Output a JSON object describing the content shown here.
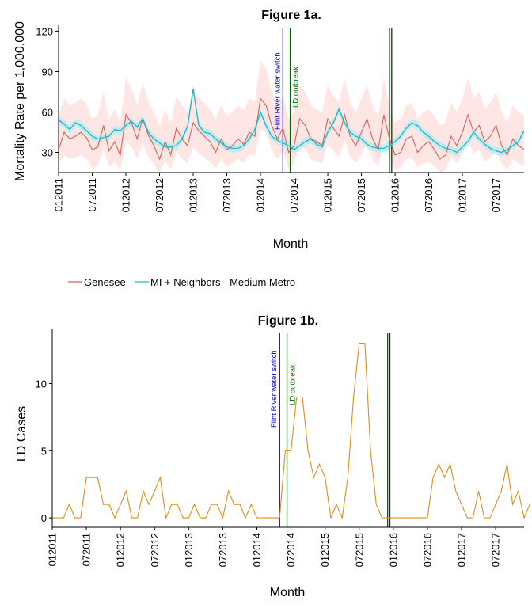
{
  "colors": {
    "genesee": "#e05c55",
    "genesee_band": "#fde6e4",
    "mi": "#1eb6c8",
    "mi_band": "#b6ecef",
    "ld": "#e08c1a",
    "switch": "#0000cc",
    "outbreak": "#006400",
    "line_dark": "#222222"
  },
  "chart_data": [
    {
      "type": "line",
      "title": "Figure 1a.",
      "xlabel": "Month",
      "ylabel": "Mortality Rate per 1,000,000",
      "ylim": [
        15,
        122
      ],
      "yticks": [
        30,
        60,
        90,
        120
      ],
      "xlim": [
        0,
        83
      ],
      "xtick_positions": [
        0,
        6,
        12,
        18,
        24,
        30,
        36,
        42,
        48,
        54,
        60,
        66,
        72,
        78
      ],
      "xtick_labels": [
        "012011",
        "072011",
        "012012",
        "072012",
        "012013",
        "072013",
        "012014",
        "072014",
        "012015",
        "072015",
        "012016",
        "072016",
        "012017",
        "072017"
      ],
      "legend": {
        "placement": "bottom-left",
        "entries": [
          "Genesee",
          "MI + Neighbors - Medium Metro"
        ]
      },
      "series": [
        {
          "name": "Genesee",
          "values": [
            32,
            45,
            40,
            42,
            45,
            41,
            32,
            34,
            50,
            31,
            38,
            28,
            58,
            52,
            40,
            55,
            43,
            35,
            25,
            38,
            28,
            48,
            40,
            35,
            52,
            46,
            42,
            38,
            30,
            40,
            32,
            35,
            40,
            36,
            45,
            42,
            70,
            65,
            50,
            40,
            48,
            30,
            35,
            55,
            50,
            40,
            38,
            35,
            55,
            48,
            42,
            58,
            42,
            35,
            45,
            55,
            40,
            32,
            58,
            40,
            28,
            30,
            40,
            42,
            30,
            35,
            38,
            32,
            25,
            28,
            42,
            35,
            45,
            58,
            45,
            50,
            38,
            42,
            50,
            35,
            28,
            40,
            35,
            32
          ]
        },
        {
          "name": "MI + Neighbors - Medium Metro",
          "values": [
            54,
            51,
            47,
            52,
            50,
            46,
            42,
            40,
            41,
            42,
            47,
            46,
            50,
            53,
            49,
            55,
            45,
            40,
            37,
            34,
            34,
            35,
            40,
            49,
            77,
            50,
            45,
            44,
            40,
            37,
            34,
            33,
            33,
            35,
            40,
            47,
            60,
            50,
            42,
            39,
            37,
            35,
            32,
            35,
            38,
            40,
            36,
            34,
            45,
            52,
            62,
            52,
            45,
            42,
            40,
            36,
            34,
            33,
            33,
            35,
            38,
            42,
            48,
            52,
            50,
            45,
            42,
            38,
            35,
            33,
            32,
            30,
            34,
            38,
            45,
            40,
            36,
            33,
            31,
            30,
            32,
            35,
            38,
            46
          ]
        },
        {
          "name": "band_low",
          "values": [
            22,
            28,
            25,
            26,
            28,
            25,
            18,
            20,
            32,
            19,
            23,
            17,
            38,
            34,
            25,
            36,
            27,
            21,
            15,
            24,
            17,
            31,
            25,
            22,
            34,
            29,
            26,
            23,
            18,
            25,
            19,
            22,
            25,
            22,
            29,
            27,
            48,
            44,
            32,
            25,
            31,
            18,
            22,
            36,
            32,
            25,
            23,
            22,
            36,
            31,
            26,
            39,
            27,
            22,
            29,
            36,
            25,
            19,
            39,
            25,
            17,
            19,
            25,
            26,
            19,
            22,
            23,
            20,
            15,
            17,
            27,
            22,
            29,
            39,
            29,
            32,
            23,
            26,
            32,
            22,
            17,
            25,
            22,
            20
          ]
        },
        {
          "name": "band_high",
          "values": [
            58,
            70,
            65,
            67,
            70,
            66,
            55,
            58,
            75,
            55,
            62,
            52,
            85,
            78,
            65,
            82,
            68,
            60,
            50,
            62,
            52,
            72,
            65,
            60,
            78,
            70,
            67,
            62,
            55,
            65,
            57,
            60,
            65,
            61,
            70,
            68,
            98,
            92,
            75,
            65,
            72,
            55,
            60,
            80,
            75,
            65,
            62,
            60,
            80,
            72,
            67,
            85,
            67,
            60,
            70,
            80,
            65,
            57,
            85,
            65,
            52,
            55,
            65,
            67,
            55,
            60,
            62,
            57,
            50,
            52,
            67,
            60,
            70,
            85,
            70,
            75,
            62,
            67,
            75,
            60,
            52,
            65,
            60,
            57
          ]
        }
      ],
      "vlines": [
        {
          "x": 40,
          "label": "Flint River water switch",
          "color": "switch"
        },
        {
          "x": 41.3,
          "label": "LD outbreak",
          "color": "outbreak"
        },
        {
          "x": 59,
          "label": "",
          "color": "outbreak"
        },
        {
          "x": 59.4,
          "label": "",
          "color": "line_dark"
        }
      ]
    },
    {
      "type": "line",
      "title": "Figure 1b.",
      "xlabel": "Month",
      "ylabel": "LD Cases",
      "ylim": [
        -0.7,
        13.8
      ],
      "yticks": [
        0,
        5,
        10
      ],
      "xlim": [
        0,
        83
      ],
      "xtick_positions": [
        0,
        6,
        12,
        18,
        24,
        30,
        36,
        42,
        48,
        54,
        60,
        66,
        72,
        78
      ],
      "xtick_labels": [
        "012011",
        "072011",
        "012012",
        "072012",
        "012013",
        "072013",
        "012014",
        "072014",
        "012015",
        "072015",
        "012016",
        "072016",
        "012017",
        "072017"
      ],
      "series": [
        {
          "name": "",
          "values": [
            0,
            0,
            0,
            1,
            0,
            0,
            3,
            3,
            3,
            1,
            1,
            0,
            1,
            2,
            0,
            0,
            2,
            1,
            2,
            3,
            0,
            1,
            1,
            0,
            0,
            1,
            0,
            0,
            1,
            1,
            0,
            2,
            1,
            1,
            0,
            1,
            0,
            0,
            0,
            0,
            0,
            5,
            5,
            9,
            9,
            5,
            3,
            4,
            3,
            0,
            1,
            0,
            3,
            9,
            13,
            13,
            5,
            1,
            0,
            0,
            0,
            0,
            0,
            0,
            0,
            0,
            0,
            3,
            4,
            3,
            4,
            2,
            1,
            0,
            0,
            2,
            0,
            0,
            1,
            2,
            4,
            1,
            2,
            0,
            1
          ]
        }
      ],
      "vlines": [
        {
          "x": 40,
          "label": "Flint River water switch",
          "color": "switch"
        },
        {
          "x": 41.3,
          "label": "LD outbreak",
          "color": "outbreak"
        },
        {
          "x": 59,
          "label": "",
          "color": "outbreak"
        },
        {
          "x": 59.4,
          "label": "",
          "color": "line_dark"
        }
      ]
    }
  ]
}
